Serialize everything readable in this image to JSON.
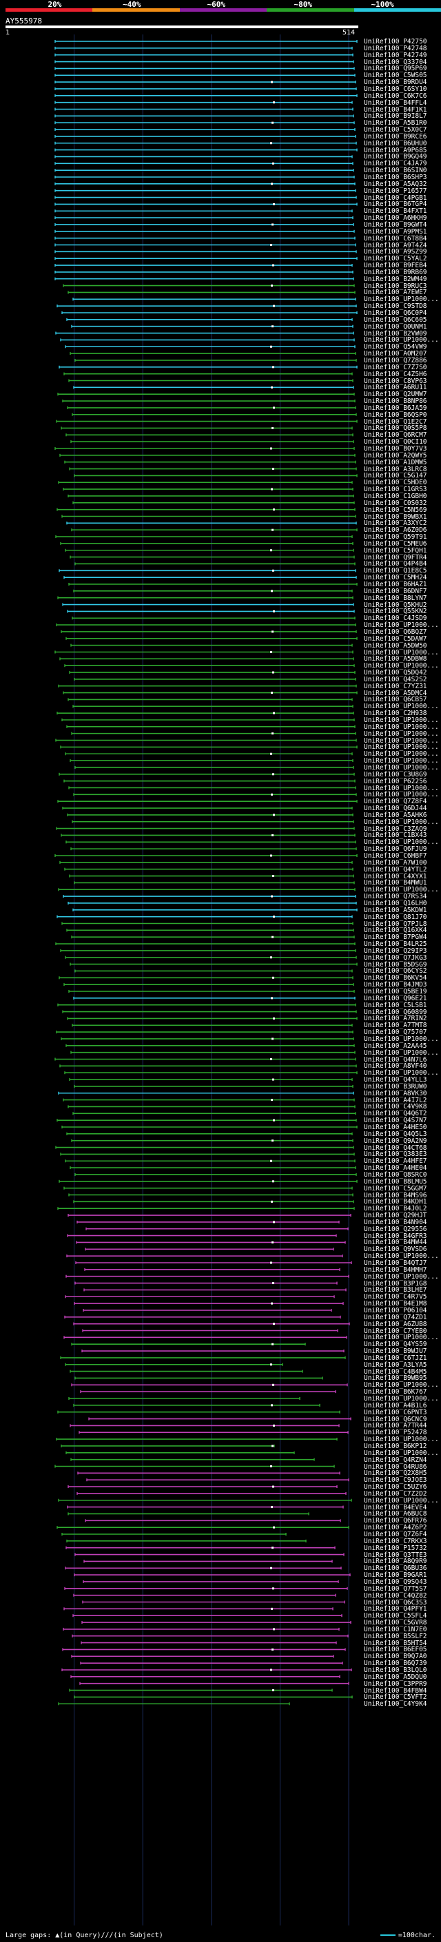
{
  "scale": {
    "labels": [
      "20%",
      "~40%",
      "~60%",
      "~80%",
      "~100%"
    ],
    "segments": [
      "#e8202c",
      "#f08c14",
      "#8c1ea0",
      "#28a028",
      "#28c8dc"
    ]
  },
  "query": {
    "title": "AY555978",
    "start": "1",
    "end": "514"
  },
  "colors": {
    "cyan": "#32c8e6",
    "green": "#2ea82e",
    "magenta": "#c040b8",
    "white_marks": "#ffffff"
  },
  "hits": [
    {
      "label": "UniRef100_P42750",
      "c": "cyan"
    },
    {
      "label": "UniRef100_P42748",
      "c": "cyan"
    },
    {
      "label": "UniRef100_P42749",
      "c": "cyan"
    },
    {
      "label": "UniRef100_Q33704",
      "c": "cyan"
    },
    {
      "label": "UniRef100_Q95P69",
      "c": "cyan"
    },
    {
      "label": "UniRef100_C5WS05",
      "c": "cyan"
    },
    {
      "label": "UniRef100_B9RDU4",
      "c": "cyan"
    },
    {
      "label": "UniRef100_C6SY10",
      "c": "cyan"
    },
    {
      "label": "UniRef100_C6K7C6",
      "c": "cyan"
    },
    {
      "label": "UniRef100_B4FFL4",
      "c": "cyan"
    },
    {
      "label": "UniRef100_B4F1K1",
      "c": "cyan"
    },
    {
      "label": "UniRef100_B9I8L7",
      "c": "cyan"
    },
    {
      "label": "UniRef100_A5B1R0",
      "c": "cyan"
    },
    {
      "label": "UniRef100_C5X0C7",
      "c": "cyan"
    },
    {
      "label": "UniRef100_B9RCE6",
      "c": "cyan"
    },
    {
      "label": "UniRef100_B6UHU0",
      "c": "cyan"
    },
    {
      "label": "UniRef100_A9P685",
      "c": "cyan"
    },
    {
      "label": "UniRef100_B9GQ49",
      "c": "cyan"
    },
    {
      "label": "UniRef100_C4JA79",
      "c": "cyan"
    },
    {
      "label": "UniRef100_B6SIN0",
      "c": "cyan"
    },
    {
      "label": "UniRef100_B6SHP3",
      "c": "cyan"
    },
    {
      "label": "UniRef100_A5AQ32",
      "c": "cyan"
    },
    {
      "label": "UniRef100_P16577",
      "c": "cyan"
    },
    {
      "label": "UniRef100_C4PGB1",
      "c": "cyan"
    },
    {
      "label": "UniRef100_B6TGP4",
      "c": "cyan"
    },
    {
      "label": "UniRef100_B4FXT1",
      "c": "cyan"
    },
    {
      "label": "UniRef100_A6HKH9",
      "c": "cyan"
    },
    {
      "label": "UniRef100_B9GWT4",
      "c": "cyan"
    },
    {
      "label": "UniRef100_A9PMS1",
      "c": "cyan"
    },
    {
      "label": "UniRef100_C6T8B4",
      "c": "cyan"
    },
    {
      "label": "UniRef100_A9T4Z4",
      "c": "cyan"
    },
    {
      "label": "UniRef100_A9SZ99",
      "c": "cyan"
    },
    {
      "label": "UniRef100_C5YAL2",
      "c": "cyan"
    },
    {
      "label": "UniRef100_B9FEB4",
      "c": "cyan"
    },
    {
      "label": "UniRef100_B9RB69",
      "c": "cyan"
    },
    {
      "label": "UniRef100_B2WM49",
      "c": "cyan"
    },
    {
      "label": "UniRef100_B9RUC3",
      "c": "green"
    },
    {
      "label": "UniRef100_A7EWE7",
      "c": "green"
    },
    {
      "label": "UniRef100_UP1000...",
      "c": "cyan"
    },
    {
      "label": "UniRef100_C9STD8",
      "c": "cyan"
    },
    {
      "label": "UniRef100_Q6C0P4",
      "c": "cyan"
    },
    {
      "label": "UniRef100_Q6C605",
      "c": "cyan"
    },
    {
      "label": "UniRef100_Q0UNM1",
      "c": "cyan"
    },
    {
      "label": "UniRef100_B2VW09",
      "c": "cyan"
    },
    {
      "label": "UniRef100_UP1000...",
      "c": "cyan"
    },
    {
      "label": "UniRef100_Q54VW9",
      "c": "cyan"
    },
    {
      "label": "UniRef100_A0M207",
      "c": "green"
    },
    {
      "label": "UniRef100_Q7Z886",
      "c": "green"
    },
    {
      "label": "UniRef100_C7Z7S0",
      "c": "cyan"
    },
    {
      "label": "UniRef100_C4Z5H6",
      "c": "green"
    },
    {
      "label": "UniRef100_C8VP63",
      "c": "green"
    },
    {
      "label": "UniRef100_A6RU11",
      "c": "cyan"
    },
    {
      "label": "UniRef100_Q2UMW7",
      "c": "green"
    },
    {
      "label": "UniRef100_B8NP86",
      "c": "green"
    },
    {
      "label": "UniRef100_B6JA59",
      "c": "green"
    },
    {
      "label": "UniRef100_B6QSP0",
      "c": "green"
    },
    {
      "label": "UniRef100_Q1E2C7",
      "c": "green"
    },
    {
      "label": "UniRef100_Q0S5P8",
      "c": "green"
    },
    {
      "label": "UniRef100_Q6RCM7",
      "c": "green"
    },
    {
      "label": "UniRef100_Q0CI10",
      "c": "green"
    },
    {
      "label": "UniRef100_B0Y7V3",
      "c": "green"
    },
    {
      "label": "UniRef100_A2QWY5",
      "c": "green"
    },
    {
      "label": "UniRef100_A1DMW5",
      "c": "green"
    },
    {
      "label": "UniRef100_A3LRC8",
      "c": "green"
    },
    {
      "label": "UniRef100_C5G147",
      "c": "green"
    },
    {
      "label": "UniRef100_C5HDE0",
      "c": "green"
    },
    {
      "label": "UniRef100_C1GRS3",
      "c": "green"
    },
    {
      "label": "UniRef100_C1GBH0",
      "c": "green"
    },
    {
      "label": "UniRef100_C0S032",
      "c": "green"
    },
    {
      "label": "UniRef100_C5N569",
      "c": "green"
    },
    {
      "label": "UniRef100_B9WBX1",
      "c": "green"
    },
    {
      "label": "UniRef100_A3XYC2",
      "c": "cyan"
    },
    {
      "label": "UniRef100_A6Z0D6",
      "c": "green"
    },
    {
      "label": "UniRef100_Q59T91",
      "c": "green"
    },
    {
      "label": "UniRef100_C5MEU6",
      "c": "green"
    },
    {
      "label": "UniRef100_C5FQH1",
      "c": "green"
    },
    {
      "label": "UniRef100_Q9FTR4",
      "c": "green"
    },
    {
      "label": "UniRef100_Q4P4B4",
      "c": "green"
    },
    {
      "label": "UniRef100_Q1E8C5",
      "c": "cyan"
    },
    {
      "label": "UniRef100_C5MH24",
      "c": "cyan"
    },
    {
      "label": "UniRef100_B6HAZ1",
      "c": "green"
    },
    {
      "label": "UniRef100_B6DNF7",
      "c": "green"
    },
    {
      "label": "UniRef100_B8LYN7",
      "c": "green"
    },
    {
      "label": "UniRef100_Q5KHU2",
      "c": "cyan"
    },
    {
      "label": "UniRef100_Q55KN2",
      "c": "cyan"
    },
    {
      "label": "UniRef100_C4JSD9",
      "c": "green"
    },
    {
      "label": "UniRef100_UP1000...",
      "c": "green"
    },
    {
      "label": "UniRef100_Q6BQZ7",
      "c": "green"
    },
    {
      "label": "UniRef100_C5DAW7",
      "c": "green"
    },
    {
      "label": "UniRef100_A5DW50",
      "c": "green"
    },
    {
      "label": "UniRef100_UP1000...",
      "c": "green"
    },
    {
      "label": "UniRef100_A5DBW8",
      "c": "green"
    },
    {
      "label": "UniRef100_UP1000...",
      "c": "green"
    },
    {
      "label": "UniRef100_Q5DQ42",
      "c": "green"
    },
    {
      "label": "UniRef100_Q4S2S2",
      "c": "green"
    },
    {
      "label": "UniRef100_C7YZ31",
      "c": "green"
    },
    {
      "label": "UniRef100_A5DMC4",
      "c": "green"
    },
    {
      "label": "UniRef100_Q6CB57",
      "c": "green"
    },
    {
      "label": "UniRef100_UP1000...",
      "c": "green"
    },
    {
      "label": "UniRef100_C2H938",
      "c": "green"
    },
    {
      "label": "UniRef100_UP1000...",
      "c": "green"
    },
    {
      "label": "UniRef100_UP1000...",
      "c": "green"
    },
    {
      "label": "UniRef100_UP1000...",
      "c": "green"
    },
    {
      "label": "UniRef100_UP1000...",
      "c": "green"
    },
    {
      "label": "UniRef100_UP1000...",
      "c": "green"
    },
    {
      "label": "UniRef100_UP1000...",
      "c": "green"
    },
    {
      "label": "UniRef100_UP1000...",
      "c": "green"
    },
    {
      "label": "UniRef100_UP1000...",
      "c": "green"
    },
    {
      "label": "UniRef100_C3U8G9",
      "c": "green"
    },
    {
      "label": "UniRef100_P62256",
      "c": "green"
    },
    {
      "label": "UniRef100_UP1000...",
      "c": "green"
    },
    {
      "label": "UniRef100_UP1000...",
      "c": "green"
    },
    {
      "label": "UniRef100_Q7Z8F4",
      "c": "green"
    },
    {
      "label": "UniRef100_Q6DJ44",
      "c": "green"
    },
    {
      "label": "UniRef100_A5AHK6",
      "c": "green"
    },
    {
      "label": "UniRef100_UP1000...",
      "c": "green"
    },
    {
      "label": "UniRef100_C3ZAQ9",
      "c": "green"
    },
    {
      "label": "UniRef100_C1BX43",
      "c": "green"
    },
    {
      "label": "UniRef100_UP1000...",
      "c": "green"
    },
    {
      "label": "UniRef100_Q6FJU9",
      "c": "green"
    },
    {
      "label": "UniRef100_C6HBF7",
      "c": "green"
    },
    {
      "label": "UniRef100_A7W100",
      "c": "green"
    },
    {
      "label": "UniRef100_Q4YTL2",
      "c": "green"
    },
    {
      "label": "UniRef100_C4XYX1",
      "c": "green"
    },
    {
      "label": "UniRef100_B4MWU1",
      "c": "green"
    },
    {
      "label": "UniRef100_UP1000...",
      "c": "green"
    },
    {
      "label": "UniRef100_Q7RS34",
      "c": "cyan"
    },
    {
      "label": "UniRef100_Q16LH0",
      "c": "cyan"
    },
    {
      "label": "UniRef100_A5KDW1",
      "c": "cyan"
    },
    {
      "label": "UniRef100_Q81J70",
      "c": "cyan"
    },
    {
      "label": "UniRef100_Q7PJL8",
      "c": "green"
    },
    {
      "label": "UniRef100_Q16XK4",
      "c": "green"
    },
    {
      "label": "UniRef100_B7PGW4",
      "c": "green"
    },
    {
      "label": "UniRef100_B4LR25",
      "c": "green"
    },
    {
      "label": "UniRef100_Q29IP3",
      "c": "green"
    },
    {
      "label": "UniRef100_Q7JKG3",
      "c": "green"
    },
    {
      "label": "UniRef100_B5DSG9",
      "c": "green"
    },
    {
      "label": "UniRef100_Q6CYS2",
      "c": "green"
    },
    {
      "label": "UniRef100_B6KV54",
      "c": "green"
    },
    {
      "label": "UniRef100_B4JMD3",
      "c": "green"
    },
    {
      "label": "UniRef100_Q5BE19",
      "c": "green"
    },
    {
      "label": "UniRef100_Q96E21",
      "c": "cyan"
    },
    {
      "label": "UniRef100_C5LSB1",
      "c": "green"
    },
    {
      "label": "UniRef100_Q60899",
      "c": "green"
    },
    {
      "label": "UniRef100_A7RIN2",
      "c": "green"
    },
    {
      "label": "UniRef100_A7TMT8",
      "c": "green"
    },
    {
      "label": "UniRef100_Q75707",
      "c": "green"
    },
    {
      "label": "UniRef100_UP1000...",
      "c": "green"
    },
    {
      "label": "UniRef100_A2AA45",
      "c": "green"
    },
    {
      "label": "UniRef100_UP1000...",
      "c": "green"
    },
    {
      "label": "UniRef100_Q4N7L6",
      "c": "green"
    },
    {
      "label": "UniRef100_A8VF40",
      "c": "green"
    },
    {
      "label": "UniRef100_UP1000...",
      "c": "green"
    },
    {
      "label": "UniRef100_Q4YLL3",
      "c": "green"
    },
    {
      "label": "UniRef100_B3RUW0",
      "c": "green"
    },
    {
      "label": "UniRef100_A8VK30",
      "c": "cyan"
    },
    {
      "label": "UniRef100_A4I7L2",
      "c": "green"
    },
    {
      "label": "UniRef100_C4V9K8",
      "c": "green"
    },
    {
      "label": "UniRef100_Q4Q6T2",
      "c": "green"
    },
    {
      "label": "UniRef100_Q4S7N7",
      "c": "green"
    },
    {
      "label": "UniRef100_A4HE50",
      "c": "green"
    },
    {
      "label": "UniRef100_Q4Q5L3",
      "c": "green"
    },
    {
      "label": "UniRef100_Q9A2N9",
      "c": "green"
    },
    {
      "label": "UniRef100_Q4CT68",
      "c": "green"
    },
    {
      "label": "UniRef100_Q383E3",
      "c": "green"
    },
    {
      "label": "UniRef100_A4HFE7",
      "c": "green"
    },
    {
      "label": "UniRef100_A4HE04",
      "c": "green"
    },
    {
      "label": "UniRef100_Q8SRC0",
      "c": "green"
    },
    {
      "label": "UniRef100_B8LMU5",
      "c": "green"
    },
    {
      "label": "UniRef100_C5GGM7",
      "c": "green"
    },
    {
      "label": "UniRef100_B4MS96",
      "c": "green"
    },
    {
      "label": "UniRef100_B4KDH1",
      "c": "green"
    },
    {
      "label": "UniRef100_B4J0L2",
      "c": "green"
    },
    {
      "label": "UniRef100_Q29HJT",
      "c": "magenta"
    },
    {
      "label": "UniRef100_B4N904",
      "c": "magenta"
    },
    {
      "label": "UniRef100_Q29556",
      "c": "magenta"
    },
    {
      "label": "UniRef100_B4GFR3",
      "c": "magenta"
    },
    {
      "label": "UniRef100_B4MW44",
      "c": "magenta"
    },
    {
      "label": "UniRef100_Q9VSD6",
      "c": "magenta"
    },
    {
      "label": "UniRef100_UP1000...",
      "c": "magenta"
    },
    {
      "label": "UniRef100_B4QTJ7",
      "c": "magenta"
    },
    {
      "label": "UniRef100_B4HMH7",
      "c": "magenta"
    },
    {
      "label": "UniRef100_UP1000...",
      "c": "magenta"
    },
    {
      "label": "UniRef100_B3P1G8",
      "c": "magenta"
    },
    {
      "label": "UniRef100_B3LHE7",
      "c": "magenta"
    },
    {
      "label": "UniRef100_C4R7V5",
      "c": "magenta"
    },
    {
      "label": "UniRef100_B4E1M8",
      "c": "magenta"
    },
    {
      "label": "UniRef100_P06104",
      "c": "magenta"
    },
    {
      "label": "UniRef100_Q74ZD1",
      "c": "magenta"
    },
    {
      "label": "UniRef100_A6ZUB8",
      "c": "magenta"
    },
    {
      "label": "UniRef100_C7YEB0",
      "c": "magenta"
    },
    {
      "label": "UniRef100_UP1000...",
      "c": "magenta"
    },
    {
      "label": "UniRef100_Q4YS59",
      "c": "green"
    },
    {
      "label": "UniRef100_B9WJU7",
      "c": "magenta"
    },
    {
      "label": "UniRef100_C6TJZ1",
      "c": "green"
    },
    {
      "label": "UniRef100_A3LYA5",
      "c": "green"
    },
    {
      "label": "UniRef100_C4B4M5",
      "c": "green"
    },
    {
      "label": "UniRef100_B9WB95",
      "c": "green"
    },
    {
      "label": "UniRef100_UP1000...",
      "c": "magenta"
    },
    {
      "label": "UniRef100_B6K767",
      "c": "magenta"
    },
    {
      "label": "UniRef100_UP1000...",
      "c": "green"
    },
    {
      "label": "UniRef100_A4B1L6",
      "c": "green"
    },
    {
      "label": "UniRef100_C6PNT3",
      "c": "green"
    },
    {
      "label": "UniRef100_Q6CNC9",
      "c": "magenta"
    },
    {
      "label": "UniRef100_A7TR44",
      "c": "magenta"
    },
    {
      "label": "UniRef100_P52478",
      "c": "magenta"
    },
    {
      "label": "UniRef100_UP1000...",
      "c": "green"
    },
    {
      "label": "UniRef100_B6KP12",
      "c": "green"
    },
    {
      "label": "UniRef100_UP1000...",
      "c": "green"
    },
    {
      "label": "UniRef100_Q4RZN4",
      "c": "green"
    },
    {
      "label": "UniRef100_Q4RU86",
      "c": "green"
    },
    {
      "label": "UniRef100_Q2X8H5",
      "c": "magenta"
    },
    {
      "label": "UniRef100_C9JOE3",
      "c": "magenta"
    },
    {
      "label": "UniRef100_C5UZY6",
      "c": "magenta"
    },
    {
      "label": "UniRef100_C7Z2D2",
      "c": "magenta"
    },
    {
      "label": "UniRef100_UP1000...",
      "c": "green"
    },
    {
      "label": "UniRef100_B4EVE4",
      "c": "magenta"
    },
    {
      "label": "UniRef100_A6BUC8",
      "c": "green"
    },
    {
      "label": "UniRef100_Q6FR76",
      "c": "magenta"
    },
    {
      "label": "UniRef100_A4Z6P2",
      "c": "green"
    },
    {
      "label": "UniRef100_Q7Z6F4",
      "c": "green"
    },
    {
      "label": "UniRef100_C7RKX3",
      "c": "green"
    },
    {
      "label": "UniRef100_P15732",
      "c": "magenta"
    },
    {
      "label": "UniRef100_Q3TTE3",
      "c": "magenta"
    },
    {
      "label": "UniRef100_A8Q9R9",
      "c": "magenta"
    },
    {
      "label": "UniRef100_Q6BU36",
      "c": "magenta"
    },
    {
      "label": "UniRef100_B9GAR1",
      "c": "magenta"
    },
    {
      "label": "UniRef100_Q9SQ43",
      "c": "magenta"
    },
    {
      "label": "UniRef100_Q7T5S7",
      "c": "magenta"
    },
    {
      "label": "UniRef100_C4QZ82",
      "c": "magenta"
    },
    {
      "label": "UniRef100_Q6C3S3",
      "c": "magenta"
    },
    {
      "label": "UniRef100_Q4PFY1",
      "c": "magenta"
    },
    {
      "label": "UniRef100_C5SFL4",
      "c": "magenta"
    },
    {
      "label": "UniRef100_C5GVR8",
      "c": "magenta"
    },
    {
      "label": "UniRef100_C1N7E0",
      "c": "magenta"
    },
    {
      "label": "UniRef100_B5SLF2",
      "c": "magenta"
    },
    {
      "label": "UniRef100_B5HT54",
      "c": "magenta"
    },
    {
      "label": "UniRef100_B6EF05",
      "c": "magenta"
    },
    {
      "label": "UniRef100_B9Q7A0",
      "c": "magenta"
    },
    {
      "label": "UniRef100_B6Q739",
      "c": "magenta"
    },
    {
      "label": "UniRef100_B3LQL0",
      "c": "magenta"
    },
    {
      "label": "UniRef100_A5DQU0",
      "c": "magenta"
    },
    {
      "label": "UniRef100_C3PPR9",
      "c": "magenta"
    },
    {
      "label": "UniRef100_B4FBW4",
      "c": "green"
    },
    {
      "label": "UniRef100_C5VFT2",
      "c": "green"
    },
    {
      "label": "UniRef100_C4Y9K4",
      "c": "green"
    }
  ],
  "footer": {
    "left": "Large gaps: ▲(in Query)/∕∕(in Subject)",
    "right": "=100char."
  }
}
